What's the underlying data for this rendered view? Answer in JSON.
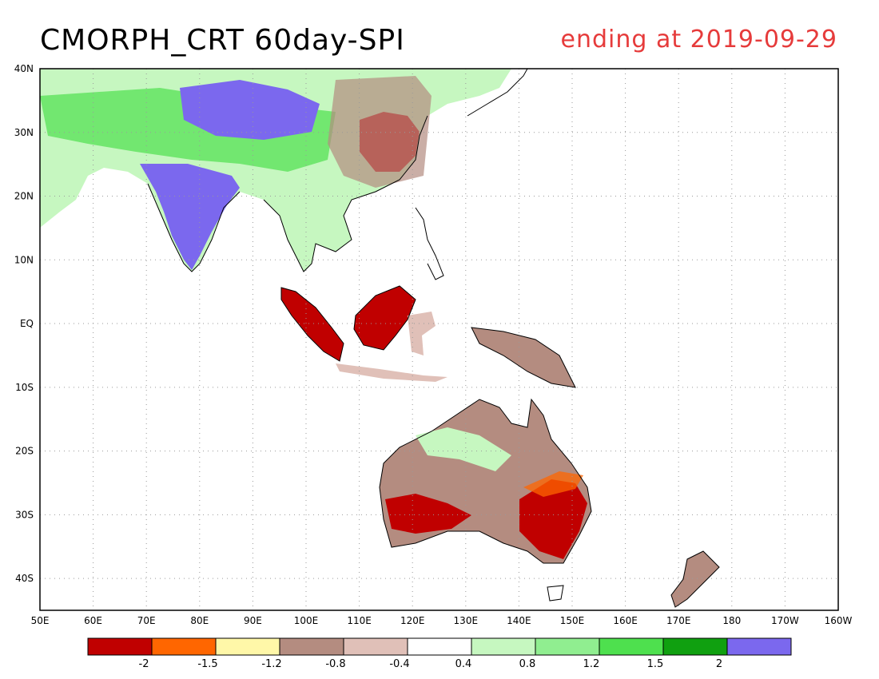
{
  "title": {
    "left": "CMORPH_CRT 60day-SPI",
    "right": "ending at 2019-09-29"
  },
  "colors": {
    "title_right": "#e63b3b",
    "coast": "#000000",
    "grid": "#9a9a9a"
  },
  "map": {
    "lon_range": [
      50,
      200
    ],
    "lat_range": [
      -45,
      40
    ],
    "lon_ticks": [
      {
        "lon": 50,
        "label": "50E"
      },
      {
        "lon": 60,
        "label": "60E"
      },
      {
        "lon": 70,
        "label": "70E"
      },
      {
        "lon": 80,
        "label": "80E"
      },
      {
        "lon": 90,
        "label": "90E"
      },
      {
        "lon": 100,
        "label": "100E"
      },
      {
        "lon": 110,
        "label": "110E"
      },
      {
        "lon": 120,
        "label": "120E"
      },
      {
        "lon": 130,
        "label": "130E"
      },
      {
        "lon": 140,
        "label": "140E"
      },
      {
        "lon": 150,
        "label": "150E"
      },
      {
        "lon": 160,
        "label": "160E"
      },
      {
        "lon": 170,
        "label": "170E"
      },
      {
        "lon": 180,
        "label": "180"
      },
      {
        "lon": 190,
        "label": "170W"
      },
      {
        "lon": 200,
        "label": "160W"
      }
    ],
    "lat_ticks": [
      {
        "lat": 40,
        "label": "40N"
      },
      {
        "lat": 30,
        "label": "30N"
      },
      {
        "lat": 20,
        "label": "20N"
      },
      {
        "lat": 10,
        "label": "10N"
      },
      {
        "lat": 0,
        "label": "EQ"
      },
      {
        "lat": -10,
        "label": "10S"
      },
      {
        "lat": -20,
        "label": "20S"
      },
      {
        "lat": -30,
        "label": "30S"
      },
      {
        "lat": -40,
        "label": "40S"
      }
    ]
  },
  "colorbar": {
    "colors": [
      "#c00000",
      "#ff6600",
      "#fff7a8",
      "#b48c80",
      "#e0c0b8",
      "#ffffff",
      "#c6f7c0",
      "#90ee90",
      "#4ee04e",
      "#10a010",
      "#7b68ee"
    ],
    "labels": [
      "-2",
      "-1.5",
      "-1.2",
      "-0.8",
      "-0.4",
      "0.4",
      "0.8",
      "1.2",
      "1.5",
      "2"
    ]
  }
}
